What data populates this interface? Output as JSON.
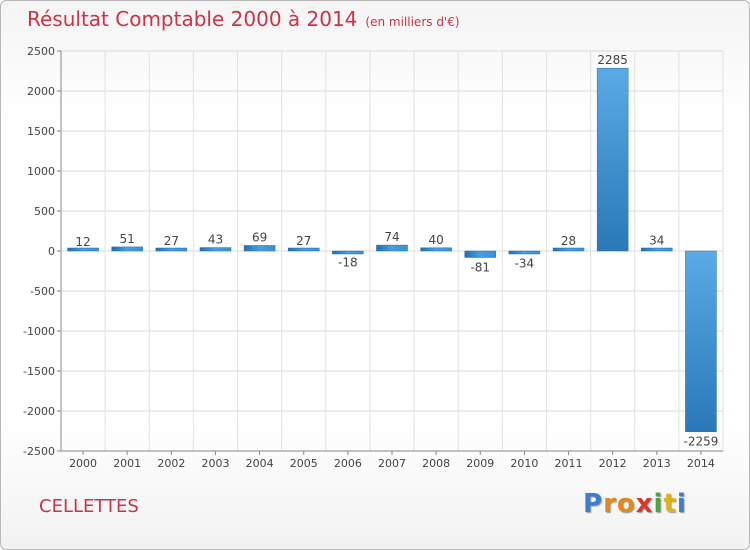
{
  "chart_data": {
    "type": "bar",
    "title": "Résultat Comptable 2000 à 2014",
    "subtitle": "(en milliers d'€)",
    "categories": [
      "2000",
      "2001",
      "2002",
      "2003",
      "2004",
      "2005",
      "2006",
      "2007",
      "2008",
      "2009",
      "2010",
      "2011",
      "2012",
      "2013",
      "2014"
    ],
    "values": [
      12,
      51,
      27,
      43,
      69,
      27,
      -18,
      74,
      40,
      -81,
      -34,
      28,
      2285,
      34,
      -2259
    ],
    "data_labels": [
      "12",
      "51",
      "27",
      "43",
      "69",
      "27",
      "-18",
      "74",
      "40",
      "-81",
      "-34",
      "28",
      "2285",
      "34",
      "-2259"
    ],
    "ylim": [
      -2500,
      2500
    ],
    "yticks": [
      2500,
      2000,
      1500,
      1000,
      500,
      0,
      -500,
      -1000,
      -1500,
      -2000,
      -2500
    ],
    "xlabel": "",
    "ylabel": "",
    "grid": true,
    "bar_color": "#3a8fd0"
  },
  "footer": {
    "commune": "CELLETTES",
    "brand_letters": [
      {
        "ch": "P",
        "color": "#3c7fc8"
      },
      {
        "ch": "r",
        "color": "#e08a1e"
      },
      {
        "ch": "o",
        "color": "#e08a1e"
      },
      {
        "ch": "x",
        "color": "#d63a2a"
      },
      {
        "ch": "i",
        "color": "#4aa83a"
      },
      {
        "ch": "t",
        "color": "#e0b21e"
      },
      {
        "ch": "i",
        "color": "#3c7fc8"
      }
    ]
  }
}
